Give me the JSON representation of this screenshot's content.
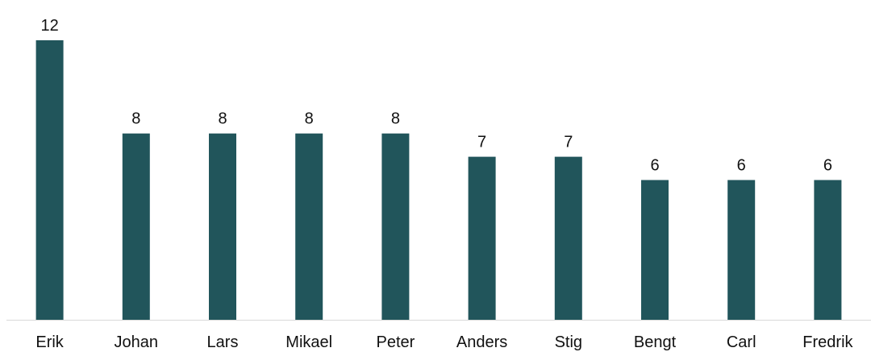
{
  "chart_data": {
    "type": "bar",
    "categories": [
      "Erik",
      "Johan",
      "Lars",
      "Mikael",
      "Peter",
      "Anders",
      "Stig",
      "Bengt",
      "Carl",
      "Fredrik"
    ],
    "values": [
      12,
      8,
      8,
      8,
      8,
      7,
      7,
      6,
      6,
      6
    ],
    "data_labels": [
      "12",
      "8",
      "8",
      "8",
      "8",
      "7",
      "7",
      "6",
      "6",
      "6"
    ],
    "ylim": [
      0,
      12
    ],
    "grid": false,
    "legend": "none",
    "colors": {
      "bar": "#21555B",
      "axis": "#D9D9D9",
      "text": "#111111"
    }
  }
}
